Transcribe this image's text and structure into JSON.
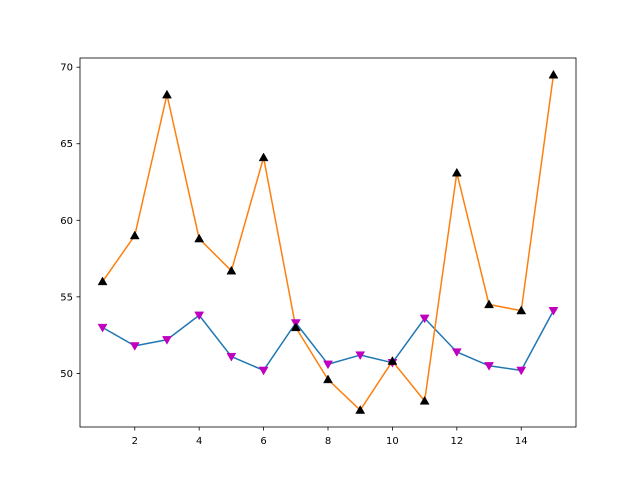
{
  "chart_data": {
    "type": "line",
    "title": "",
    "xlabel": "",
    "ylabel": "",
    "xlim": [
      0.3,
      15.7
    ],
    "ylim": [
      46.5,
      70.6
    ],
    "grid": false,
    "legend": "none",
    "x": [
      1,
      2,
      3,
      4,
      5,
      6,
      7,
      8,
      9,
      10,
      11,
      12,
      13,
      14,
      15
    ],
    "x_ticks": [
      2,
      4,
      6,
      8,
      10,
      12,
      14
    ],
    "y_ticks": [
      50,
      55,
      60,
      65,
      70
    ],
    "series": [
      {
        "color": "#1f77b4",
        "marker": "triangle-down",
        "marker_color": "#bf00bf",
        "values": [
          53.0,
          51.8,
          52.2,
          53.8,
          51.1,
          50.2,
          53.3,
          50.6,
          51.2,
          50.7,
          53.6,
          51.4,
          50.5,
          50.2,
          54.1
        ]
      },
      {
        "color": "#ff7f0e",
        "marker": "triangle-up",
        "marker_color": "#000000",
        "values": [
          56.0,
          59.0,
          68.2,
          58.8,
          56.7,
          64.1,
          53.0,
          49.6,
          47.6,
          50.8,
          48.2,
          63.1,
          54.5,
          54.1,
          69.5
        ]
      }
    ]
  }
}
